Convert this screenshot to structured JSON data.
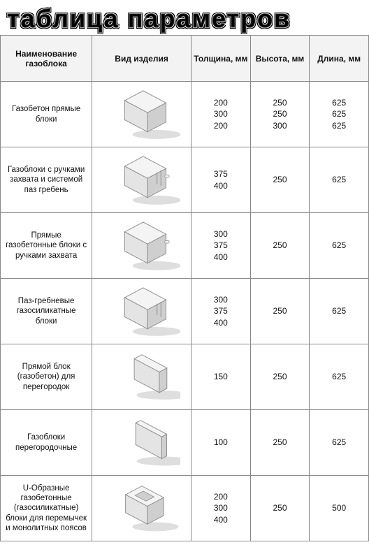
{
  "title": "таблица параметров",
  "headers": {
    "name": "Наименование газоблока",
    "view": "Вид изделия",
    "thickness": "Толщина, мм",
    "height": "Высота, мм",
    "length": "Длина, мм"
  },
  "rows": [
    {
      "name": "Газобетон прямые блоки",
      "shape": "plain",
      "thickness": [
        "200",
        "300",
        "200"
      ],
      "height": [
        "250",
        "250",
        "300"
      ],
      "length": [
        "625",
        "625",
        "625"
      ]
    },
    {
      "name": "Газоблоки с ручками захвата и системой паз гребень",
      "shape": "handles_tongue",
      "thickness": [
        "375",
        "400"
      ],
      "height": [
        "250"
      ],
      "length": [
        "625"
      ]
    },
    {
      "name": "Прямые газобетонные блоки с ручками захвата",
      "shape": "handles",
      "thickness": [
        "300",
        "375",
        "400"
      ],
      "height": [
        "250"
      ],
      "length": [
        "625"
      ]
    },
    {
      "name": "Паз-гребневые газосиликатные блоки",
      "shape": "tongue",
      "thickness": [
        "300",
        "375",
        "400"
      ],
      "height": [
        "250"
      ],
      "length": [
        "625"
      ]
    },
    {
      "name": "Прямой блок (газобетон) для перегородок",
      "shape": "thin",
      "thickness": [
        "150"
      ],
      "height": [
        "250"
      ],
      "length": [
        "625"
      ]
    },
    {
      "name": "Газоблоки перегородочные",
      "shape": "verythin",
      "thickness": [
        "100"
      ],
      "height": [
        "250"
      ],
      "length": [
        "625"
      ]
    },
    {
      "name": "U-Образные газобетонные (газосиликатные) блоки для перемычек и монолитных поясов",
      "shape": "ushape",
      "thickness": [
        "200",
        "300",
        "400"
      ],
      "height": [
        "250"
      ],
      "length": [
        "500"
      ]
    }
  ],
  "style": {
    "block_fill_top": "#f4f4f4",
    "block_fill_front": "#e4e4e4",
    "block_fill_side": "#cfcfcf",
    "block_stroke": "#8a8a8a",
    "shadow": "#bdbdbd",
    "border_color": "#888888",
    "header_bg": "#f3f3f3",
    "title_fontsize": 36
  }
}
